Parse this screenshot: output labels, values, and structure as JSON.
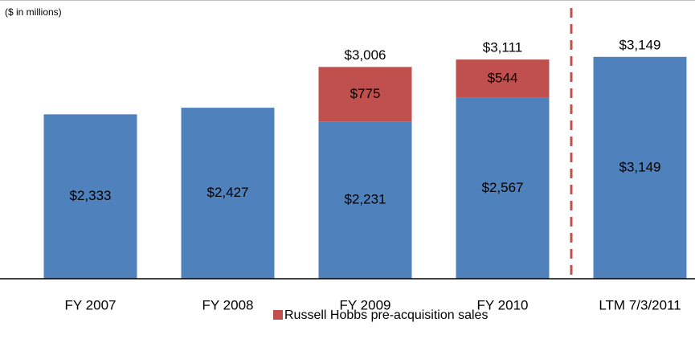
{
  "chart_data": {
    "type": "stacked_bar",
    "subtitle": "($ in millions)",
    "categories": [
      "FY 2007",
      "FY 2008",
      "FY 2009",
      "FY 2010",
      "LTM 7/3/2011"
    ],
    "series": [
      {
        "color": "#4f81bd",
        "values": [
          2333,
          2427,
          2231,
          2567,
          3149
        ],
        "value_labels": [
          "$2,333",
          "$2,427",
          "$2,231",
          "$2,567",
          "$3,149"
        ]
      },
      {
        "name": "Russell Hobbs pre-acquisition sales",
        "color": "#c0504d",
        "values": [
          null,
          null,
          775,
          544,
          null
        ],
        "value_labels": [
          null,
          null,
          "$775",
          "$544",
          null
        ]
      }
    ],
    "totals": [
      null,
      null,
      3006,
      3111,
      3149
    ],
    "total_labels": [
      null,
      null,
      "$3,006",
      "$3,111",
      "$3,149"
    ],
    "ylim": [
      0,
      3500
    ],
    "legend": "bottom"
  }
}
